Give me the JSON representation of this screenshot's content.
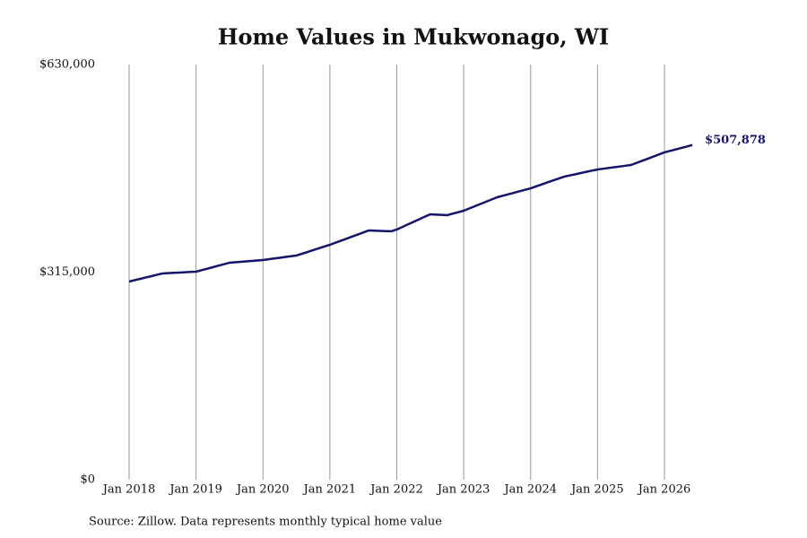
{
  "chart_data": {
    "type": "line",
    "title": "Home Values in Mukwonago, WI",
    "source": "Source: Zillow. Data represents monthly typical home value",
    "color": "#14146b",
    "x": [
      "2018-01",
      "2018-02",
      "2018-03",
      "2018-04",
      "2018-05",
      "2018-06",
      "2018-07",
      "2018-08",
      "2018-09",
      "2018-10",
      "2018-11",
      "2018-12",
      "2019-01",
      "2019-02",
      "2019-03",
      "2019-04",
      "2019-05",
      "2019-06",
      "2019-07",
      "2019-08",
      "2019-09",
      "2019-10",
      "2019-11",
      "2019-12",
      "2020-01",
      "2020-02",
      "2020-03",
      "2020-04",
      "2020-05",
      "2020-06",
      "2020-07",
      "2020-08",
      "2020-09",
      "2020-10",
      "2020-11",
      "2020-12",
      "2021-01",
      "2021-02",
      "2021-03",
      "2021-04",
      "2021-05",
      "2021-06",
      "2021-07",
      "2021-08",
      "2021-09",
      "2021-10",
      "2021-11",
      "2021-12",
      "2022-01",
      "2022-02",
      "2022-03",
      "2022-04",
      "2022-05",
      "2022-06",
      "2022-07",
      "2022-08",
      "2022-09",
      "2022-10",
      "2022-11",
      "2022-12",
      "2023-01",
      "2023-02",
      "2023-03",
      "2023-04",
      "2023-05",
      "2023-06",
      "2023-07",
      "2023-08",
      "2023-09",
      "2023-10",
      "2023-11",
      "2023-12",
      "2024-01",
      "2024-02",
      "2024-03",
      "2024-04",
      "2024-05",
      "2024-06",
      "2024-07",
      "2024-08",
      "2024-09",
      "2024-10",
      "2024-11",
      "2024-12",
      "2025-01",
      "2025-02",
      "2025-03",
      "2025-04",
      "2025-05",
      "2025-06",
      "2025-07",
      "2025-08",
      "2025-09",
      "2025-10",
      "2025-11",
      "2025-12",
      "2026-01",
      "2026-02",
      "2026-03",
      "2026-04",
      "2026-05",
      "2026-06"
    ],
    "values": [
      300700,
      302800,
      304800,
      306900,
      308900,
      311000,
      313000,
      313500,
      313900,
      314400,
      314800,
      315300,
      315700,
      318000,
      320200,
      322500,
      324800,
      327000,
      329300,
      330000,
      330700,
      331300,
      332000,
      332700,
      333400,
      334500,
      335700,
      336800,
      337900,
      339100,
      340200,
      342900,
      345600,
      348400,
      351100,
      353800,
      356500,
      359600,
      362700,
      365800,
      369000,
      372100,
      375200,
      378300,
      378000,
      377600,
      377300,
      377000,
      379700,
      383600,
      387400,
      391300,
      395100,
      399000,
      402800,
      402300,
      401900,
      401400,
      403700,
      405900,
      408200,
      411600,
      415000,
      418400,
      421800,
      425200,
      428600,
      430900,
      433100,
      435400,
      437700,
      439900,
      442200,
      445200,
      448100,
      451100,
      454000,
      457000,
      459900,
      461700,
      463500,
      465400,
      467200,
      469000,
      470800,
      471900,
      473100,
      474200,
      475300,
      476500,
      477600,
      480800,
      484000,
      487100,
      490300,
      493500,
      496700,
      498900,
      501200,
      503400,
      505600,
      507878
    ],
    "value_labels": [
      null,
      null,
      null,
      null,
      null,
      null,
      null,
      null,
      null,
      null,
      null,
      null,
      null,
      null,
      null,
      null,
      null,
      null,
      null,
      null,
      null,
      null,
      null,
      null,
      null,
      null,
      null,
      null,
      null,
      null,
      null,
      null,
      null,
      null,
      null,
      null,
      null,
      null,
      null,
      null,
      null,
      null,
      null,
      null,
      null,
      null,
      null,
      null,
      null,
      null,
      null,
      null,
      null,
      null,
      null,
      null,
      null,
      null,
      null,
      null,
      null,
      null,
      null,
      null,
      null,
      null,
      null,
      null,
      null,
      null,
      null,
      null,
      null,
      null,
      null,
      null,
      null,
      null,
      null,
      null,
      null,
      null,
      null,
      null,
      null,
      null,
      null,
      null,
      null,
      null,
      null,
      null,
      null,
      null,
      null,
      null,
      null,
      null,
      null,
      null,
      null,
      "$507,878"
    ],
    "xticks": [
      {
        "value": "2018-01",
        "label": "Jan 2018"
      },
      {
        "value": "2019-01",
        "label": "Jan 2019"
      },
      {
        "value": "2020-01",
        "label": "Jan 2020"
      },
      {
        "value": "2021-01",
        "label": "Jan 2021"
      },
      {
        "value": "2022-01",
        "label": "Jan 2022"
      },
      {
        "value": "2023-01",
        "label": "Jan 2023"
      },
      {
        "value": "2024-01",
        "label": "Jan 2024"
      },
      {
        "value": "2025-01",
        "label": "Jan 2025"
      },
      {
        "value": "2026-01",
        "label": "Jan 2026"
      }
    ],
    "ylim": [
      0,
      630000
    ],
    "yticks": [
      {
        "value": 0,
        "label": "$0"
      },
      {
        "value": 315000,
        "label": "$315,000"
      },
      {
        "value": 630000,
        "label": "$630,000"
      }
    ],
    "grid": true
  }
}
